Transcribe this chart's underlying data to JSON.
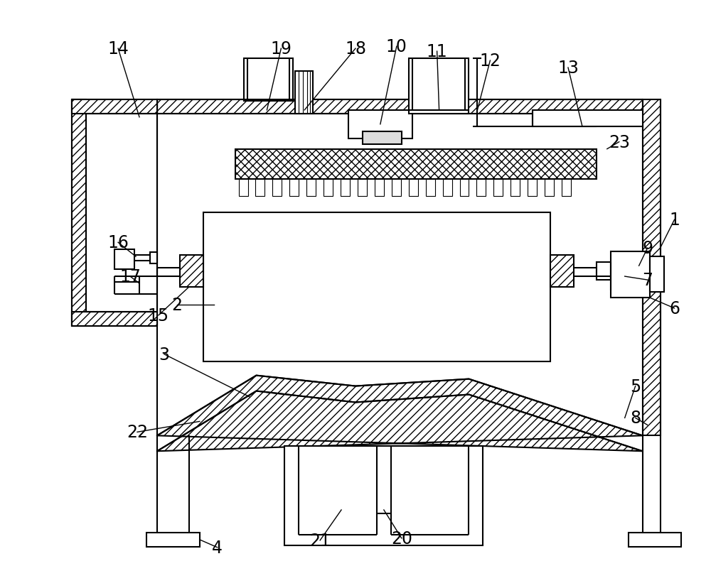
{
  "bg_color": "#ffffff",
  "lc": "#000000",
  "lw": 1.5,
  "fig_w": 10.0,
  "fig_h": 8.29
}
